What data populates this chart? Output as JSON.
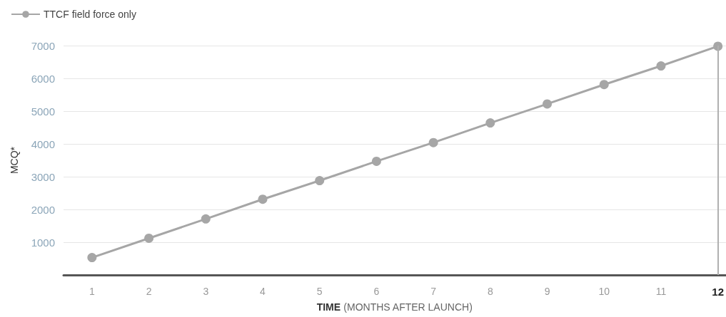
{
  "chart_data": {
    "type": "line",
    "xlabel": "TIME (MONTHS AFTER LAUNCH)",
    "ylabel": "MCQ*",
    "x": [
      1,
      2,
      3,
      4,
      5,
      6,
      7,
      8,
      9,
      10,
      11,
      12
    ],
    "series": [
      {
        "name": "TTCF field force only",
        "color": "#a6a6a6",
        "values": [
          530,
          1120,
          1710,
          2310,
          2880,
          3470,
          4040,
          4640,
          5220,
          5810,
          6380,
          6980
        ]
      }
    ],
    "xlim": [
      0.5,
      12.14
    ],
    "xticks": [
      1,
      2,
      3,
      4,
      5,
      6,
      7,
      8,
      9,
      10,
      11,
      12
    ],
    "ylim": [
      0,
      7000
    ],
    "yticks": [
      1000,
      2000,
      3000,
      4000,
      5000,
      6000,
      7000
    ],
    "ref_lines": [
      {
        "axis": "x",
        "value": 12,
        "color": "#b0b0b0"
      }
    ],
    "grid": "y",
    "legend": "top left",
    "marker": "circle",
    "line_style": "solid"
  }
}
